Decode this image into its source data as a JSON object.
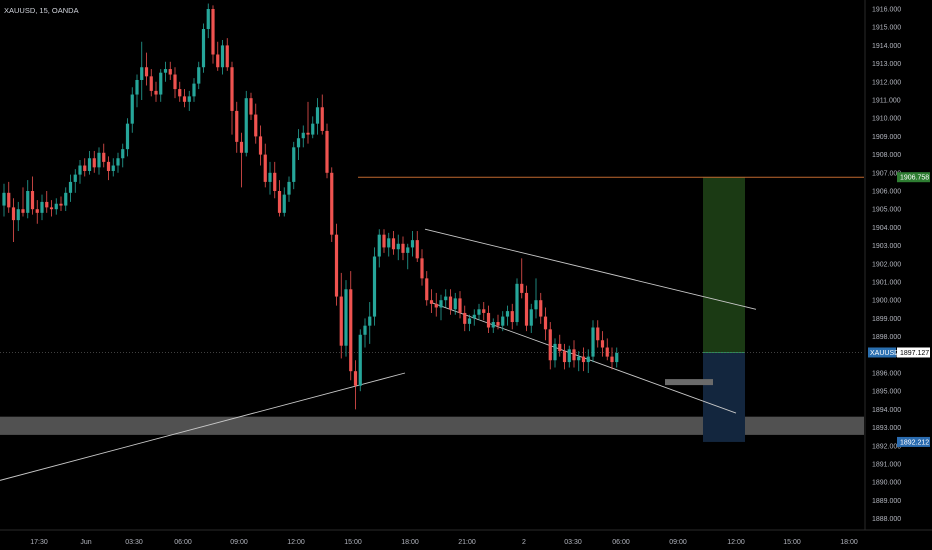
{
  "header": {
    "symbol_info": "XAUUSD, 15, OANDA"
  },
  "colors": {
    "background": "#000000",
    "up_candle": "#26a69a",
    "down_candle": "#ef5350",
    "resistance_line": "#c0692f",
    "profit_zone": "#1b3a14",
    "loss_zone": "#13263e",
    "support_zone": "#5a5a5a",
    "current_price_badge": "#ffffff",
    "resistance_badge": "#2e7d32",
    "stop_badge": "#2b6cb0"
  },
  "price_axis": {
    "ticks": [
      "1916.000",
      "1915.000",
      "1914.000",
      "1913.000",
      "1912.000",
      "1911.000",
      "1910.000",
      "1909.000",
      "1908.000",
      "1907.000",
      "1906.000",
      "1905.000",
      "1904.000",
      "1903.000",
      "1902.000",
      "1901.000",
      "1900.000",
      "1899.000",
      "1898.000",
      "1897.000",
      "1896.000",
      "1895.000",
      "1894.000",
      "1893.000",
      "1892.000",
      "1891.000",
      "1890.000",
      "1889.000",
      "1888.000"
    ],
    "current_price_label": "1897.127",
    "symbol_badge": "XAUUSD",
    "target_label": "1906.758",
    "stop_label": "1892.212"
  },
  "time_axis": {
    "ticks": [
      "17:30",
      "Jun",
      "03:30",
      "06:00",
      "09:00",
      "12:00",
      "15:00",
      "18:00",
      "21:00",
      "2",
      "03:30",
      "06:00",
      "09:00",
      "12:00",
      "15:00",
      "18:00"
    ]
  },
  "chart_data": {
    "type": "candlestick",
    "title": "XAUUSD, 15, OANDA",
    "y_range": [
      1887.6,
      1916.4
    ],
    "horizontal_levels": {
      "resistance": 1906.758,
      "current": 1897.127,
      "stop": 1892.212
    },
    "support_zone": [
      1892.6,
      1893.6
    ],
    "trendlines": [
      {
        "name": "channel-upper",
        "from": [
          1903.9,
          1903.9
        ],
        "to": [
          1899.5,
          1899.5
        ]
      },
      {
        "name": "channel-lower",
        "from": [
          1899.9,
          1899.9
        ],
        "to": [
          1893.8,
          1893.8
        ]
      },
      {
        "name": "rising-support",
        "from": [
          1890.1,
          1890.1
        ],
        "to": [
          1896.0,
          1896.0
        ]
      }
    ],
    "position": {
      "entry": 1897.127,
      "target": 1906.758,
      "stop": 1892.212
    },
    "candles": [
      {
        "o": 1905.2,
        "h": 1906.4,
        "l": 1904.6,
        "c": 1905.9
      },
      {
        "o": 1905.9,
        "h": 1906.5,
        "l": 1904.8,
        "c": 1905.1
      },
      {
        "o": 1905.1,
        "h": 1905.6,
        "l": 1903.2,
        "c": 1904.4
      },
      {
        "o": 1904.4,
        "h": 1905.4,
        "l": 1903.8,
        "c": 1905.0
      },
      {
        "o": 1905.0,
        "h": 1906.2,
        "l": 1904.6,
        "c": 1904.8
      },
      {
        "o": 1904.8,
        "h": 1906.6,
        "l": 1904.5,
        "c": 1906.0
      },
      {
        "o": 1906.0,
        "h": 1906.8,
        "l": 1904.7,
        "c": 1905.0
      },
      {
        "o": 1905.0,
        "h": 1905.5,
        "l": 1904.2,
        "c": 1904.8
      },
      {
        "o": 1904.8,
        "h": 1905.8,
        "l": 1904.4,
        "c": 1905.4
      },
      {
        "o": 1905.4,
        "h": 1906.0,
        "l": 1904.8,
        "c": 1905.1
      },
      {
        "o": 1905.1,
        "h": 1905.5,
        "l": 1904.6,
        "c": 1905.0
      },
      {
        "o": 1905.0,
        "h": 1905.6,
        "l": 1904.7,
        "c": 1905.3
      },
      {
        "o": 1905.3,
        "h": 1905.7,
        "l": 1904.9,
        "c": 1905.2
      },
      {
        "o": 1905.2,
        "h": 1906.2,
        "l": 1904.9,
        "c": 1905.9
      },
      {
        "o": 1905.9,
        "h": 1906.9,
        "l": 1905.4,
        "c": 1906.5
      },
      {
        "o": 1906.5,
        "h": 1907.2,
        "l": 1905.9,
        "c": 1906.9
      },
      {
        "o": 1906.9,
        "h": 1907.7,
        "l": 1906.4,
        "c": 1907.4
      },
      {
        "o": 1907.4,
        "h": 1907.8,
        "l": 1906.8,
        "c": 1907.1
      },
      {
        "o": 1907.1,
        "h": 1908.2,
        "l": 1906.9,
        "c": 1907.8
      },
      {
        "o": 1907.8,
        "h": 1908.2,
        "l": 1907.0,
        "c": 1907.3
      },
      {
        "o": 1907.3,
        "h": 1908.4,
        "l": 1906.9,
        "c": 1908.1
      },
      {
        "o": 1908.1,
        "h": 1908.6,
        "l": 1907.3,
        "c": 1907.6
      },
      {
        "o": 1907.6,
        "h": 1907.9,
        "l": 1906.6,
        "c": 1907.1
      },
      {
        "o": 1907.1,
        "h": 1907.8,
        "l": 1906.8,
        "c": 1907.4
      },
      {
        "o": 1907.4,
        "h": 1908.1,
        "l": 1907.0,
        "c": 1907.8
      },
      {
        "o": 1907.8,
        "h": 1908.6,
        "l": 1907.3,
        "c": 1908.3
      },
      {
        "o": 1908.3,
        "h": 1910.0,
        "l": 1907.9,
        "c": 1909.7
      },
      {
        "o": 1909.7,
        "h": 1911.7,
        "l": 1909.2,
        "c": 1911.3
      },
      {
        "o": 1911.3,
        "h": 1912.4,
        "l": 1910.6,
        "c": 1912.1
      },
      {
        "o": 1912.1,
        "h": 1914.2,
        "l": 1911.0,
        "c": 1912.8
      },
      {
        "o": 1912.8,
        "h": 1913.6,
        "l": 1911.8,
        "c": 1912.3
      },
      {
        "o": 1912.3,
        "h": 1912.7,
        "l": 1911.2,
        "c": 1911.5
      },
      {
        "o": 1911.5,
        "h": 1912.0,
        "l": 1910.9,
        "c": 1911.3
      },
      {
        "o": 1911.3,
        "h": 1912.7,
        "l": 1910.9,
        "c": 1912.5
      },
      {
        "o": 1912.5,
        "h": 1913.1,
        "l": 1912.0,
        "c": 1912.7
      },
      {
        "o": 1912.7,
        "h": 1913.1,
        "l": 1912.1,
        "c": 1912.4
      },
      {
        "o": 1912.4,
        "h": 1912.8,
        "l": 1911.1,
        "c": 1911.6
      },
      {
        "o": 1911.6,
        "h": 1912.0,
        "l": 1910.9,
        "c": 1911.2
      },
      {
        "o": 1911.2,
        "h": 1911.6,
        "l": 1910.6,
        "c": 1910.9
      },
      {
        "o": 1910.9,
        "h": 1911.5,
        "l": 1910.4,
        "c": 1911.2
      },
      {
        "o": 1911.2,
        "h": 1912.2,
        "l": 1910.9,
        "c": 1911.9
      },
      {
        "o": 1911.9,
        "h": 1913.1,
        "l": 1911.6,
        "c": 1912.8
      },
      {
        "o": 1912.8,
        "h": 1915.2,
        "l": 1912.5,
        "c": 1914.9
      },
      {
        "o": 1914.9,
        "h": 1916.3,
        "l": 1914.4,
        "c": 1916.0
      },
      {
        "o": 1916.0,
        "h": 1916.2,
        "l": 1913.0,
        "c": 1913.5
      },
      {
        "o": 1913.5,
        "h": 1914.2,
        "l": 1912.6,
        "c": 1912.8
      },
      {
        "o": 1912.8,
        "h": 1914.3,
        "l": 1912.4,
        "c": 1914.0
      },
      {
        "o": 1914.0,
        "h": 1914.4,
        "l": 1912.6,
        "c": 1912.8
      },
      {
        "o": 1912.8,
        "h": 1913.1,
        "l": 1909.1,
        "c": 1910.4
      },
      {
        "o": 1910.4,
        "h": 1910.9,
        "l": 1908.1,
        "c": 1908.7
      },
      {
        "o": 1908.7,
        "h": 1909.2,
        "l": 1906.2,
        "c": 1908.1
      },
      {
        "o": 1908.1,
        "h": 1911.5,
        "l": 1907.9,
        "c": 1911.1
      },
      {
        "o": 1911.1,
        "h": 1911.4,
        "l": 1909.9,
        "c": 1910.2
      },
      {
        "o": 1910.2,
        "h": 1910.8,
        "l": 1908.6,
        "c": 1909.0
      },
      {
        "o": 1909.0,
        "h": 1909.6,
        "l": 1907.4,
        "c": 1908.0
      },
      {
        "o": 1908.0,
        "h": 1908.6,
        "l": 1906.2,
        "c": 1906.5
      },
      {
        "o": 1906.5,
        "h": 1907.6,
        "l": 1905.8,
        "c": 1907.0
      },
      {
        "o": 1907.0,
        "h": 1907.6,
        "l": 1905.6,
        "c": 1906.0
      },
      {
        "o": 1906.0,
        "h": 1906.6,
        "l": 1904.6,
        "c": 1904.8
      },
      {
        "o": 1904.8,
        "h": 1906.2,
        "l": 1904.6,
        "c": 1905.8
      },
      {
        "o": 1905.8,
        "h": 1906.8,
        "l": 1905.4,
        "c": 1906.5
      },
      {
        "o": 1906.5,
        "h": 1908.7,
        "l": 1906.1,
        "c": 1908.4
      },
      {
        "o": 1908.4,
        "h": 1909.4,
        "l": 1907.7,
        "c": 1908.9
      },
      {
        "o": 1908.9,
        "h": 1909.6,
        "l": 1908.4,
        "c": 1909.2
      },
      {
        "o": 1909.2,
        "h": 1910.9,
        "l": 1908.6,
        "c": 1909.1
      },
      {
        "o": 1909.1,
        "h": 1910.1,
        "l": 1908.9,
        "c": 1909.7
      },
      {
        "o": 1909.7,
        "h": 1911.1,
        "l": 1909.1,
        "c": 1910.6
      },
      {
        "o": 1910.6,
        "h": 1911.3,
        "l": 1909.1,
        "c": 1909.3
      },
      {
        "o": 1909.3,
        "h": 1909.7,
        "l": 1906.7,
        "c": 1907.0
      },
      {
        "o": 1907.0,
        "h": 1907.3,
        "l": 1903.2,
        "c": 1903.6
      },
      {
        "o": 1903.6,
        "h": 1904.2,
        "l": 1899.7,
        "c": 1900.2
      },
      {
        "o": 1900.2,
        "h": 1901.5,
        "l": 1896.8,
        "c": 1897.5
      },
      {
        "o": 1897.5,
        "h": 1901.1,
        "l": 1896.9,
        "c": 1900.6
      },
      {
        "o": 1900.6,
        "h": 1901.6,
        "l": 1895.6,
        "c": 1896.1
      },
      {
        "o": 1896.1,
        "h": 1896.7,
        "l": 1894.0,
        "c": 1895.3
      },
      {
        "o": 1895.3,
        "h": 1898.4,
        "l": 1895.0,
        "c": 1898.1
      },
      {
        "o": 1898.1,
        "h": 1899.0,
        "l": 1897.4,
        "c": 1898.6
      },
      {
        "o": 1898.6,
        "h": 1899.9,
        "l": 1897.6,
        "c": 1899.1
      },
      {
        "o": 1899.1,
        "h": 1902.9,
        "l": 1898.6,
        "c": 1902.4
      },
      {
        "o": 1902.4,
        "h": 1903.9,
        "l": 1901.8,
        "c": 1903.6
      },
      {
        "o": 1903.6,
        "h": 1903.9,
        "l": 1902.6,
        "c": 1902.9
      },
      {
        "o": 1902.9,
        "h": 1903.7,
        "l": 1902.4,
        "c": 1903.4
      },
      {
        "o": 1903.4,
        "h": 1903.8,
        "l": 1902.5,
        "c": 1902.8
      },
      {
        "o": 1902.8,
        "h": 1903.6,
        "l": 1902.2,
        "c": 1903.1
      },
      {
        "o": 1903.1,
        "h": 1903.5,
        "l": 1902.2,
        "c": 1902.6
      },
      {
        "o": 1902.6,
        "h": 1903.1,
        "l": 1901.7,
        "c": 1902.9
      },
      {
        "o": 1902.9,
        "h": 1903.8,
        "l": 1902.4,
        "c": 1903.3
      },
      {
        "o": 1903.3,
        "h": 1903.8,
        "l": 1902.1,
        "c": 1902.3
      },
      {
        "o": 1902.3,
        "h": 1902.8,
        "l": 1900.8,
        "c": 1901.2
      },
      {
        "o": 1901.2,
        "h": 1901.6,
        "l": 1899.7,
        "c": 1900.0
      },
      {
        "o": 1900.0,
        "h": 1900.6,
        "l": 1899.3,
        "c": 1899.8
      },
      {
        "o": 1899.8,
        "h": 1900.4,
        "l": 1899.1,
        "c": 1899.6
      },
      {
        "o": 1899.6,
        "h": 1900.3,
        "l": 1898.9,
        "c": 1900.0
      },
      {
        "o": 1900.0,
        "h": 1900.6,
        "l": 1899.6,
        "c": 1900.2
      },
      {
        "o": 1900.2,
        "h": 1900.6,
        "l": 1899.2,
        "c": 1899.5
      },
      {
        "o": 1899.5,
        "h": 1900.4,
        "l": 1899.2,
        "c": 1900.1
      },
      {
        "o": 1900.1,
        "h": 1900.5,
        "l": 1899.0,
        "c": 1899.3
      },
      {
        "o": 1899.3,
        "h": 1899.7,
        "l": 1898.3,
        "c": 1898.7
      },
      {
        "o": 1898.7,
        "h": 1899.2,
        "l": 1898.3,
        "c": 1899.0
      },
      {
        "o": 1899.0,
        "h": 1899.5,
        "l": 1898.6,
        "c": 1899.2
      },
      {
        "o": 1899.2,
        "h": 1899.8,
        "l": 1898.9,
        "c": 1899.5
      },
      {
        "o": 1899.5,
        "h": 1899.9,
        "l": 1898.9,
        "c": 1899.3
      },
      {
        "o": 1899.3,
        "h": 1899.7,
        "l": 1898.2,
        "c": 1898.5
      },
      {
        "o": 1898.5,
        "h": 1899.0,
        "l": 1898.2,
        "c": 1898.8
      },
      {
        "o": 1898.8,
        "h": 1899.2,
        "l": 1898.4,
        "c": 1898.6
      },
      {
        "o": 1898.6,
        "h": 1899.4,
        "l": 1898.3,
        "c": 1899.1
      },
      {
        "o": 1899.1,
        "h": 1899.7,
        "l": 1898.6,
        "c": 1899.4
      },
      {
        "o": 1899.4,
        "h": 1899.8,
        "l": 1898.4,
        "c": 1898.8
      },
      {
        "o": 1898.8,
        "h": 1901.2,
        "l": 1898.6,
        "c": 1900.9
      },
      {
        "o": 1900.9,
        "h": 1902.3,
        "l": 1900.1,
        "c": 1900.4
      },
      {
        "o": 1900.4,
        "h": 1900.8,
        "l": 1898.3,
        "c": 1898.6
      },
      {
        "o": 1898.6,
        "h": 1899.8,
        "l": 1898.2,
        "c": 1899.5
      },
      {
        "o": 1899.5,
        "h": 1901.2,
        "l": 1899.0,
        "c": 1900.0
      },
      {
        "o": 1900.0,
        "h": 1900.4,
        "l": 1898.7,
        "c": 1899.1
      },
      {
        "o": 1899.1,
        "h": 1899.6,
        "l": 1897.8,
        "c": 1898.4
      },
      {
        "o": 1898.4,
        "h": 1898.8,
        "l": 1896.2,
        "c": 1896.7
      },
      {
        "o": 1896.7,
        "h": 1897.9,
        "l": 1896.3,
        "c": 1897.6
      },
      {
        "o": 1897.6,
        "h": 1898.1,
        "l": 1896.9,
        "c": 1897.2
      },
      {
        "o": 1897.2,
        "h": 1897.6,
        "l": 1896.2,
        "c": 1896.6
      },
      {
        "o": 1896.6,
        "h": 1897.5,
        "l": 1896.3,
        "c": 1897.3
      },
      {
        "o": 1897.3,
        "h": 1897.8,
        "l": 1896.3,
        "c": 1896.7
      },
      {
        "o": 1896.7,
        "h": 1897.2,
        "l": 1896.1,
        "c": 1896.9
      },
      {
        "o": 1896.9,
        "h": 1897.4,
        "l": 1896.1,
        "c": 1896.6
      },
      {
        "o": 1896.6,
        "h": 1897.3,
        "l": 1896.0,
        "c": 1896.9
      },
      {
        "o": 1896.9,
        "h": 1898.9,
        "l": 1896.6,
        "c": 1898.5
      },
      {
        "o": 1898.5,
        "h": 1898.9,
        "l": 1897.4,
        "c": 1897.8
      },
      {
        "o": 1897.8,
        "h": 1898.3,
        "l": 1896.9,
        "c": 1897.4
      },
      {
        "o": 1897.4,
        "h": 1897.9,
        "l": 1896.7,
        "c": 1896.9
      },
      {
        "o": 1896.9,
        "h": 1897.4,
        "l": 1896.2,
        "c": 1896.6
      },
      {
        "o": 1896.6,
        "h": 1897.4,
        "l": 1896.3,
        "c": 1897.1
      }
    ]
  }
}
